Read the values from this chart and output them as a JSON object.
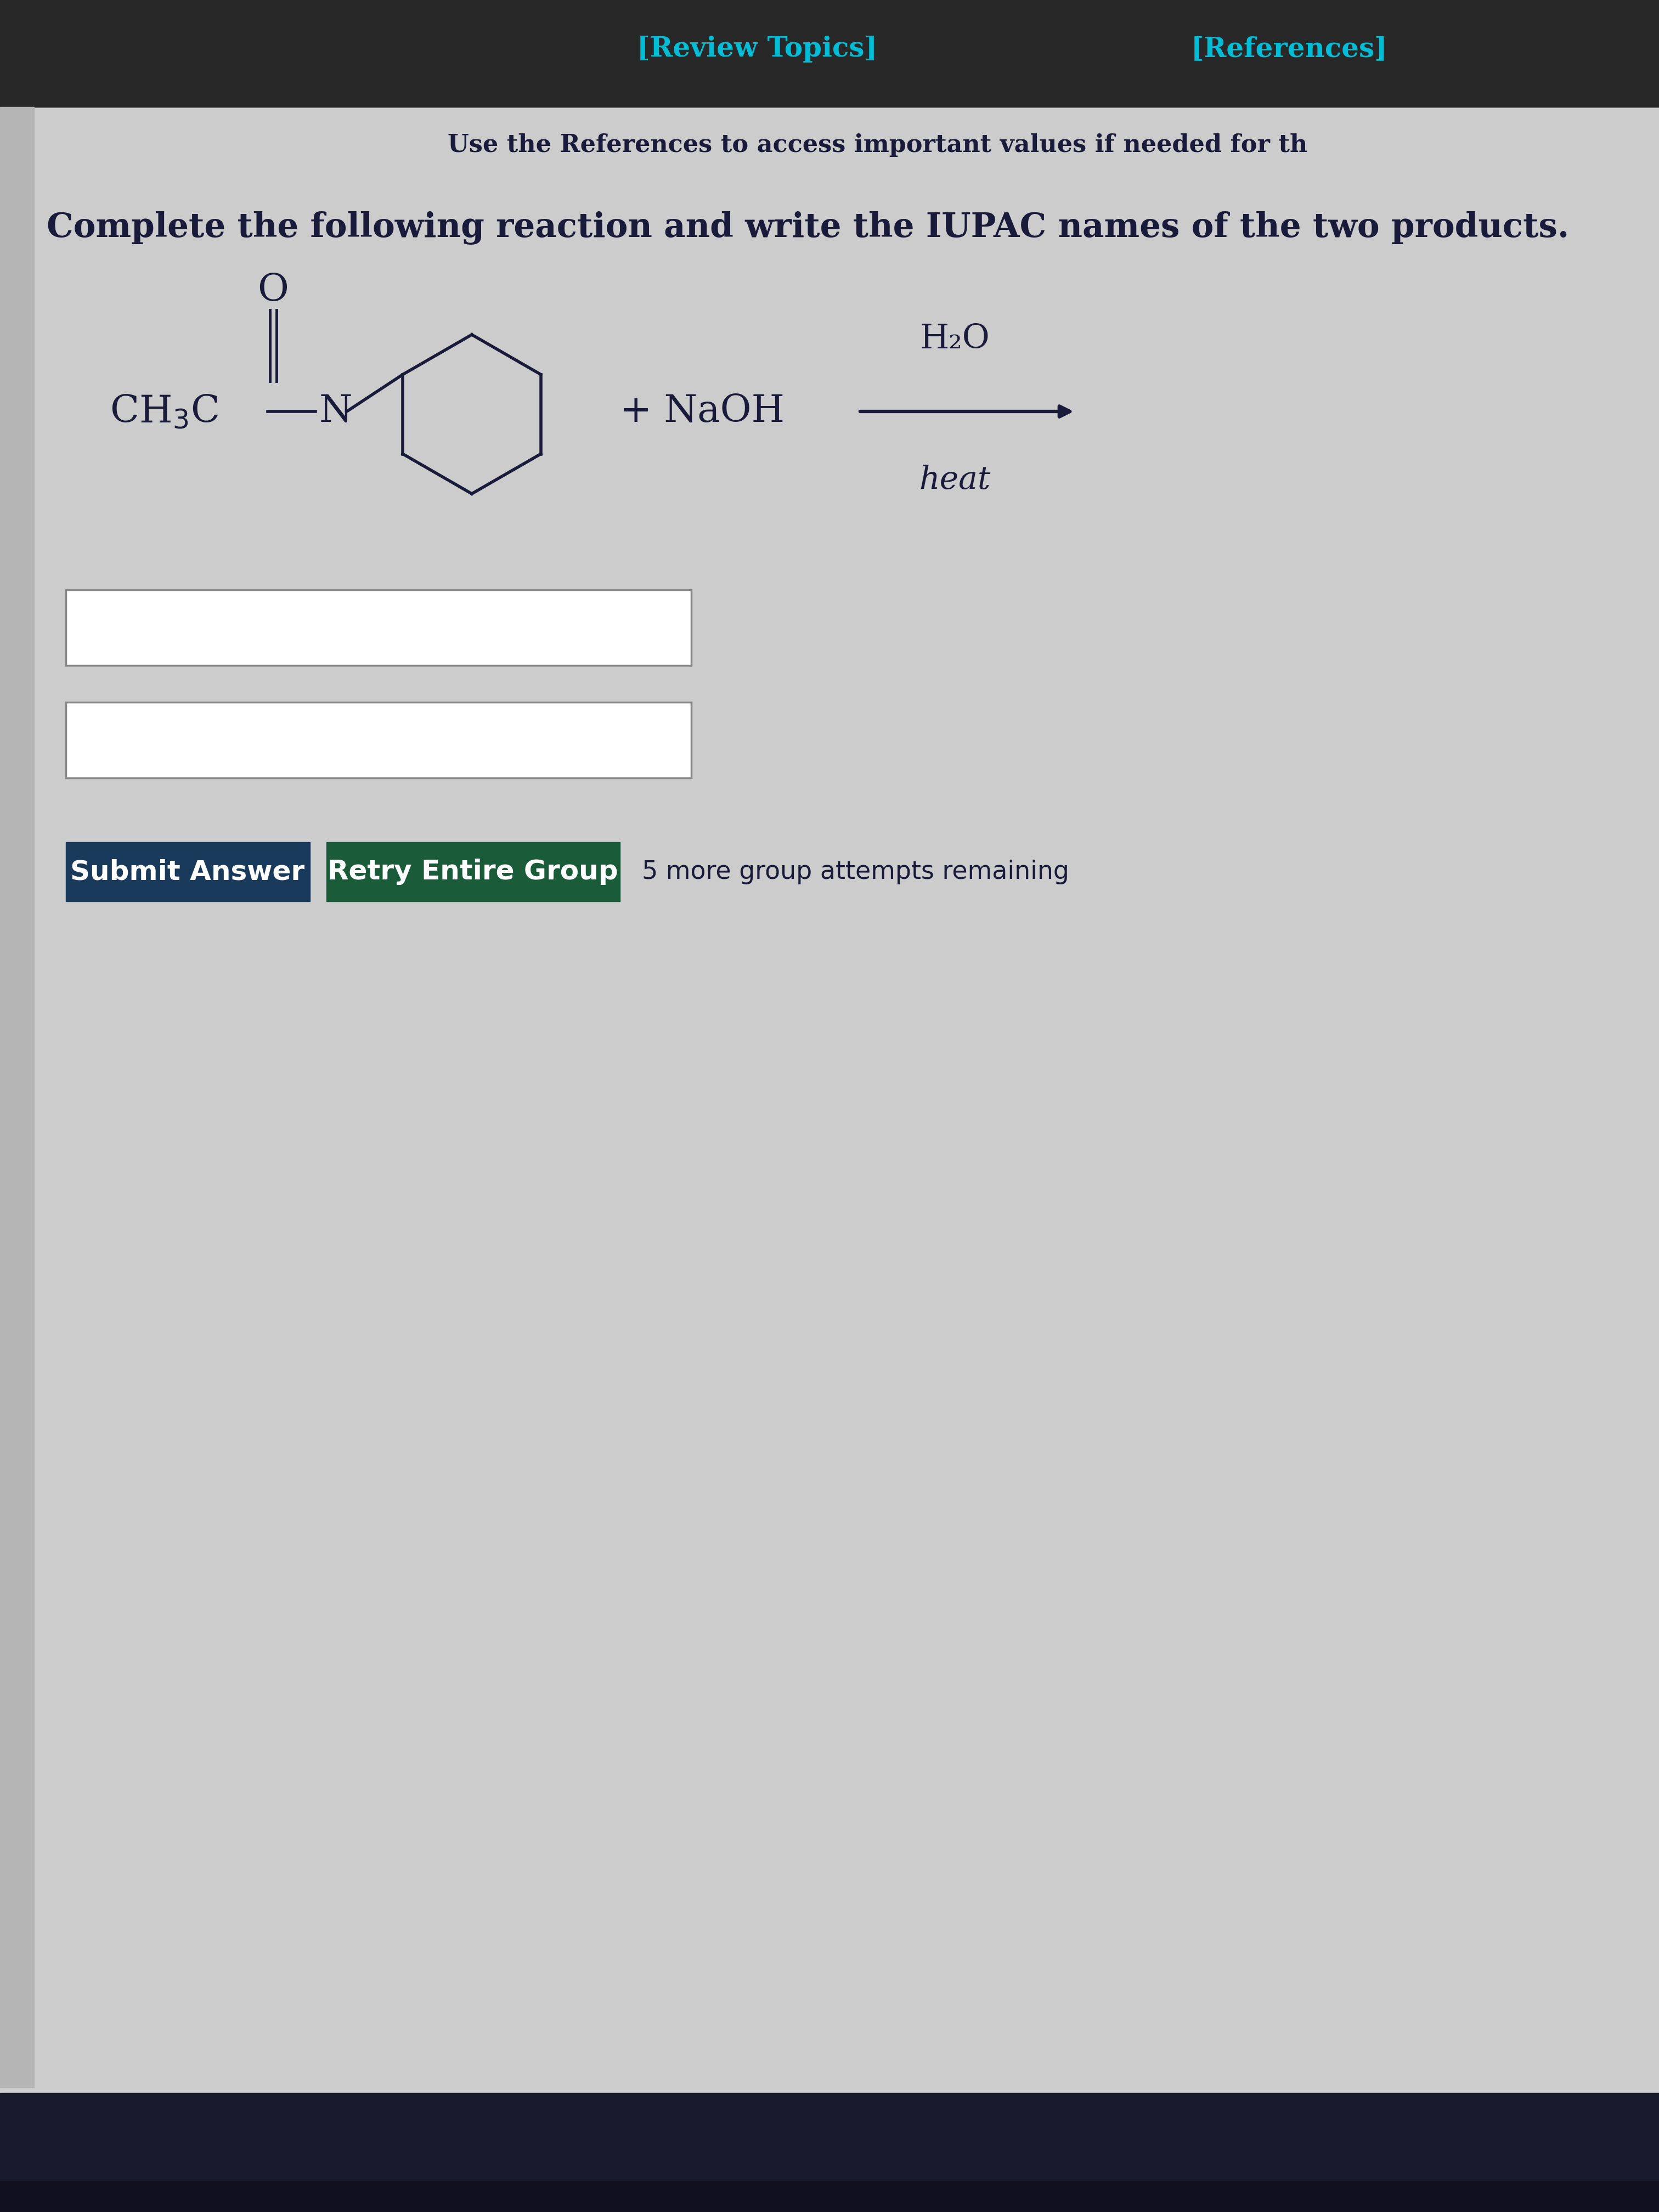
{
  "bg_color": "#cccccc",
  "top_bar_color": "#282828",
  "nav_text1": "[Review Topics]",
  "nav_text2": "[References]",
  "ref_text": "Use the References to access important values if needed for th",
  "title_text": "Complete the following reaction and write the IUPAC names of the two products.",
  "h2o_label": "H₂O",
  "heat_label": "heat",
  "plus_naoh": "+ NaOH",
  "submit_btn_text": "Submit Answer",
  "retry_btn_text": "Retry Entire Group",
  "attempts_text": "5 more group attempts remaining",
  "submit_btn_color": "#1a3a5c",
  "retry_btn_color": "#1a5c3a",
  "nav_color": "#00bcd4",
  "text_color": "#1a1a3a",
  "taskbar_color": "#1a1a2e",
  "left_strip_color": "#b0b0b0"
}
